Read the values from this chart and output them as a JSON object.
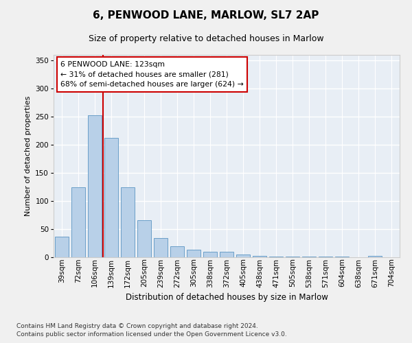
{
  "title": "6, PENWOOD LANE, MARLOW, SL7 2AP",
  "subtitle": "Size of property relative to detached houses in Marlow",
  "xlabel": "Distribution of detached houses by size in Marlow",
  "ylabel": "Number of detached properties",
  "categories": [
    "39sqm",
    "72sqm",
    "106sqm",
    "139sqm",
    "172sqm",
    "205sqm",
    "239sqm",
    "272sqm",
    "305sqm",
    "338sqm",
    "372sqm",
    "405sqm",
    "438sqm",
    "471sqm",
    "505sqm",
    "538sqm",
    "571sqm",
    "604sqm",
    "638sqm",
    "671sqm",
    "704sqm"
  ],
  "values": [
    37,
    124,
    253,
    212,
    124,
    66,
    34,
    19,
    14,
    10,
    10,
    5,
    2,
    1,
    1,
    1,
    1,
    1,
    0,
    3,
    0
  ],
  "bar_color": "#b8d0e8",
  "bar_edge_color": "#6a9fc8",
  "plot_bg_color": "#e8eef5",
  "fig_bg_color": "#f0f0f0",
  "grid_color": "#ffffff",
  "vline_x_index": 2.5,
  "vline_color": "#cc0000",
  "annotation_text": "6 PENWOOD LANE: 123sqm\n← 31% of detached houses are smaller (281)\n68% of semi-detached houses are larger (624) →",
  "annotation_box_edgecolor": "#cc0000",
  "ylim": [
    0,
    360
  ],
  "yticks": [
    0,
    50,
    100,
    150,
    200,
    250,
    300,
    350
  ],
  "title_fontsize": 11,
  "subtitle_fontsize": 9,
  "xlabel_fontsize": 8.5,
  "ylabel_fontsize": 8,
  "tick_fontsize": 7.5,
  "footer1": "Contains HM Land Registry data © Crown copyright and database right 2024.",
  "footer2": "Contains public sector information licensed under the Open Government Licence v3.0."
}
